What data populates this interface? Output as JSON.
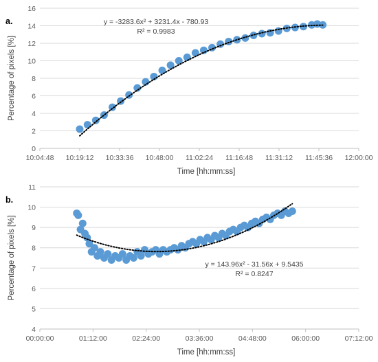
{
  "colors": {
    "marker": "#5b9bd5",
    "trend": "#000000",
    "grid": "#d9d9d9",
    "axis": "#bfbfbf"
  },
  "chart_data": [
    {
      "panel_label": "a.",
      "type": "scatter",
      "xlabel": "Time [hh:mm:ss]",
      "ylabel": "Percentage of pixels [%]",
      "x_ticks": [
        "10:04:48",
        "10:19:12",
        "10:33:36",
        "10:48:00",
        "11:02:24",
        "11:16:48",
        "11:31:12",
        "11:45:36",
        "12:00:00"
      ],
      "xlim": [
        "10:04:48",
        "12:00:00"
      ],
      "ylim": [
        0,
        16
      ],
      "y_ticks": [
        "0",
        "2",
        "4",
        "6",
        "8",
        "10",
        "12",
        "14",
        "16"
      ],
      "grid": true,
      "series": [
        {
          "marker": "circle",
          "x": [
            "10:19:12",
            "10:22:00",
            "10:25:00",
            "10:28:00",
            "10:31:00",
            "10:34:00",
            "10:37:00",
            "10:40:00",
            "10:43:00",
            "10:46:00",
            "10:49:00",
            "10:52:00",
            "10:55:00",
            "10:58:00",
            "11:01:00",
            "11:04:00",
            "11:07:00",
            "11:10:00",
            "11:13:00",
            "11:16:00",
            "11:19:00",
            "11:22:00",
            "11:25:00",
            "11:28:00",
            "11:31:00",
            "11:34:00",
            "11:37:00",
            "11:40:00",
            "11:43:00",
            "11:45:00",
            "11:47:00"
          ],
          "y": [
            2.2,
            2.7,
            3.2,
            3.8,
            4.7,
            5.4,
            6.1,
            6.9,
            7.6,
            8.2,
            8.9,
            9.5,
            10.0,
            10.4,
            10.9,
            11.2,
            11.5,
            11.9,
            12.2,
            12.4,
            12.6,
            12.9,
            13.1,
            13.2,
            13.4,
            13.7,
            13.8,
            13.9,
            14.1,
            14.2,
            14.1
          ]
        }
      ],
      "trendline": {
        "type": "polynomial",
        "order": 2,
        "style": "dotted",
        "coefficients": [
          -3283.6,
          3231.4,
          -780.93
        ],
        "equation": "y = -3283.6x² + 3231.4x - 780.93",
        "r_squared": "R² = 0.9983"
      }
    },
    {
      "panel_label": "b.",
      "type": "scatter",
      "xlabel": "Time [hh:mm:ss]",
      "ylabel": "Percentage of pixels [%]",
      "x_ticks": [
        "00:00:00",
        "01:12:00",
        "02:24:00",
        "03:36:00",
        "04:48:00",
        "06:00:00",
        "07:12:00"
      ],
      "xlim": [
        "00:00:00",
        "07:12:00"
      ],
      "ylim": [
        4,
        11
      ],
      "y_ticks": [
        "4",
        "5",
        "6",
        "7",
        "8",
        "9",
        "10",
        "11"
      ],
      "grid": true,
      "series": [
        {
          "marker": "circle",
          "x": [
            "00:50:00",
            "00:52:00",
            "00:55:00",
            "00:58:00",
            "01:01:00",
            "01:04:00",
            "01:07:00",
            "01:10:00",
            "01:14:00",
            "01:18:00",
            "01:22:00",
            "01:27:00",
            "01:32:00",
            "01:37:00",
            "01:42:00",
            "01:47:00",
            "01:52:00",
            "01:57:00",
            "02:02:00",
            "02:07:00",
            "02:12:00",
            "02:17:00",
            "02:22:00",
            "02:27:00",
            "02:32:00",
            "02:37:00",
            "02:42:00",
            "02:47:00",
            "02:52:00",
            "02:57:00",
            "03:02:00",
            "03:07:00",
            "03:12:00",
            "03:17:00",
            "03:22:00",
            "03:27:00",
            "03:32:00",
            "03:37:00",
            "03:42:00",
            "03:47:00",
            "03:52:00",
            "03:57:00",
            "04:02:00",
            "04:07:00",
            "04:12:00",
            "04:17:00",
            "04:22:00",
            "04:27:00",
            "04:32:00",
            "04:37:00",
            "04:42:00",
            "04:47:00",
            "04:52:00",
            "04:57:00",
            "05:02:00",
            "05:07:00",
            "05:12:00",
            "05:17:00",
            "05:22:00",
            "05:27:00",
            "05:32:00",
            "05:37:00",
            "05:42:00"
          ],
          "y": [
            9.7,
            9.6,
            8.9,
            9.2,
            8.7,
            8.5,
            8.2,
            7.8,
            8.0,
            7.6,
            7.8,
            7.5,
            7.7,
            7.4,
            7.6,
            7.5,
            7.7,
            7.4,
            7.6,
            7.5,
            7.8,
            7.6,
            7.9,
            7.7,
            7.8,
            7.9,
            7.7,
            7.9,
            7.8,
            7.9,
            8.0,
            7.9,
            8.1,
            8.0,
            8.2,
            8.3,
            8.2,
            8.4,
            8.3,
            8.5,
            8.4,
            8.6,
            8.5,
            8.7,
            8.6,
            8.8,
            8.9,
            8.8,
            9.0,
            9.1,
            9.0,
            9.2,
            9.3,
            9.2,
            9.4,
            9.5,
            9.4,
            9.6,
            9.7,
            9.6,
            9.8,
            9.7,
            9.8
          ]
        }
      ],
      "trendline": {
        "type": "polynomial",
        "order": 2,
        "style": "dotted",
        "coefficients": [
          143.96,
          -31.56,
          9.5435
        ],
        "equation": "y = 143.96x² - 31.56x + 9.5435",
        "r_squared": "R² = 0.8247"
      }
    }
  ]
}
